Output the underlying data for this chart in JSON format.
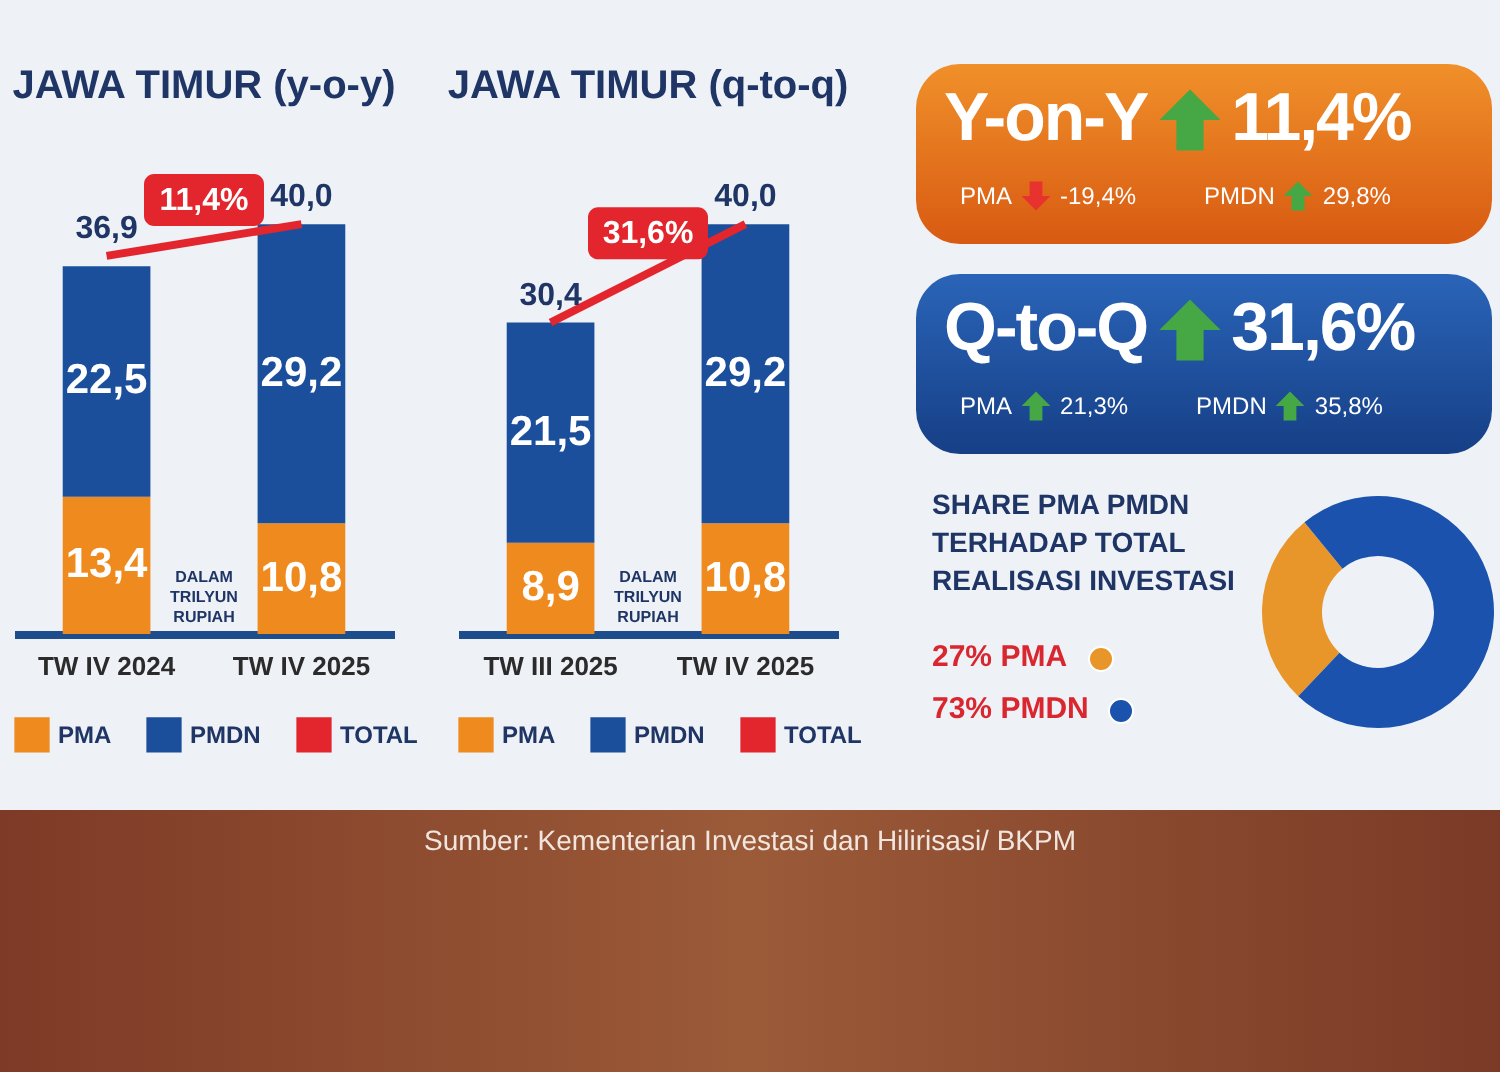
{
  "chart_data": [
    {
      "type": "bar",
      "title": "JAWA TIMUR (y-o-y)",
      "categories": [
        "TW IV 2024",
        "TW IV 2025"
      ],
      "stacked": true,
      "legend": "bottom",
      "series": [
        {
          "name": "PMA",
          "color": "#ef8a1e",
          "values": [
            13.4,
            10.8
          ],
          "value_labels": [
            "13,4",
            "10,8"
          ]
        },
        {
          "name": "PMDN",
          "color": "#1b4f9c",
          "values": [
            22.5,
            29.2
          ],
          "value_labels": [
            "22,5",
            "29,2"
          ]
        },
        {
          "name": "TOTAL",
          "type": "line",
          "color": "#e3262d",
          "values": [
            36.9,
            40.0
          ],
          "value_labels": [
            "36,9",
            "40,0"
          ]
        }
      ],
      "annotations": [
        "11,4%",
        "DALAM TRILYUN RUPIAH",
        "Sumber: Kementerian Investasi dan Hilirisasi/ BKPM"
      ]
    },
    {
      "type": "bar",
      "title": "JAWA TIMUR (q-to-q)",
      "categories": [
        "TW III 2025",
        "TW IV 2025"
      ],
      "stacked": true,
      "legend": "bottom",
      "series": [
        {
          "name": "PMA",
          "color": "#ef8a1e",
          "values": [
            8.9,
            10.8
          ],
          "value_labels": [
            "8,9",
            "10,8"
          ]
        },
        {
          "name": "PMDN",
          "color": "#1b4f9c",
          "values": [
            21.5,
            29.2
          ],
          "value_labels": [
            "21,5",
            "29,2"
          ]
        },
        {
          "name": "TOTAL",
          "type": "line",
          "color": "#e3262d",
          "values": [
            30.4,
            40.0
          ],
          "value_labels": [
            "30,4",
            "40,0"
          ]
        }
      ],
      "annotations": [
        "31,6%",
        "DALAM TRILYUN RUPIAH"
      ]
    },
    {
      "type": "other",
      "title": "Y-on-Y",
      "annotations": [
        "11,4%",
        "PMA",
        "-19,4%",
        "PMDN",
        "29,8%"
      ]
    },
    {
      "type": "other",
      "title": "Q-to-Q",
      "annotations": [
        "31,6%",
        "PMA",
        "21,3%",
        "PMDN",
        "35,8%"
      ]
    },
    {
      "type": "donut",
      "title": "SHARE PMA PMDN TERHADAP TOTAL REALISASI INVESTASI",
      "categories": [
        "PMA",
        "PMDN"
      ],
      "values": [
        27,
        73
      ],
      "value_labels": [
        "27%",
        "73%"
      ],
      "legend": "left",
      "colors": [
        "#e8962a",
        "#1a52ad"
      ]
    }
  ]
}
